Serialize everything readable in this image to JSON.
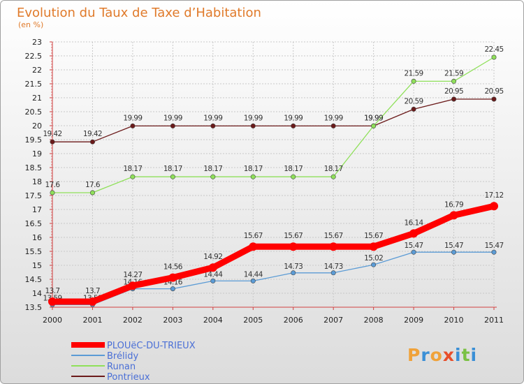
{
  "chart_data": {
    "type": "line",
    "title": "Evolution du Taux de Taxe d’Habitation",
    "subtitle": "(en %)",
    "x": [
      "2000",
      "2001",
      "2002",
      "2003",
      "2004",
      "2005",
      "2006",
      "2007",
      "2008",
      "2009",
      "2010",
      "2011"
    ],
    "ylim": [
      13.5,
      23
    ],
    "yticks": [
      "13.5",
      "14",
      "14.5",
      "15",
      "15.5",
      "16",
      "16.5",
      "17",
      "17.5",
      "18",
      "18.5",
      "19",
      "19.5",
      "20",
      "20.5",
      "21",
      "21.5",
      "22",
      "22.5",
      "23"
    ],
    "grid": true,
    "legend_position": "bottom-left",
    "series": [
      {
        "name": "PLOUëC-DU-TRIEUX",
        "color": "#ff0000",
        "values": [
          13.7,
          13.7,
          14.27,
          14.56,
          14.92,
          15.67,
          15.67,
          15.67,
          15.67,
          16.14,
          16.79,
          17.12
        ],
        "labels": [
          "13.7",
          "13.7",
          "14.27",
          "14.56",
          "14.92",
          "15.67",
          "15.67",
          "15.67",
          "15.67",
          "16.14",
          "16.79",
          "17.12"
        ]
      },
      {
        "name": "Brélidy",
        "color": "#5b9bd5",
        "values": [
          13.59,
          13.59,
          14.16,
          14.16,
          14.44,
          14.44,
          14.73,
          14.73,
          15.02,
          15.47,
          15.47,
          15.47
        ],
        "labels": [
          "13.59",
          "13.59",
          "14.16",
          "14.16",
          "14.44",
          "14.44",
          "14.73",
          "14.73",
          "15.02",
          "15.47",
          "15.47",
          "15.47"
        ]
      },
      {
        "name": "Runan",
        "color": "#8fe05a",
        "values": [
          17.6,
          17.6,
          18.17,
          18.17,
          18.17,
          18.17,
          18.17,
          18.17,
          19.99,
          21.59,
          21.59,
          22.45
        ],
        "labels": [
          "17.6",
          "17.6",
          "18.17",
          "18.17",
          "18.17",
          "18.17",
          "18.17",
          "18.17",
          "19.99",
          "21.59",
          "21.59",
          "22.45"
        ]
      },
      {
        "name": "Pontrieux",
        "color": "#6b1a1a",
        "values": [
          19.42,
          19.42,
          19.99,
          19.99,
          19.99,
          19.99,
          19.99,
          19.99,
          19.99,
          20.59,
          20.95,
          20.95
        ],
        "labels": [
          "19.42",
          "19.42",
          "19.99",
          "19.99",
          "19.99",
          "19.99",
          "19.99",
          "19.99",
          "19.99",
          "20.59",
          "20.95",
          "20.95"
        ]
      }
    ]
  },
  "brand": {
    "logo_text": "Proxiti"
  }
}
